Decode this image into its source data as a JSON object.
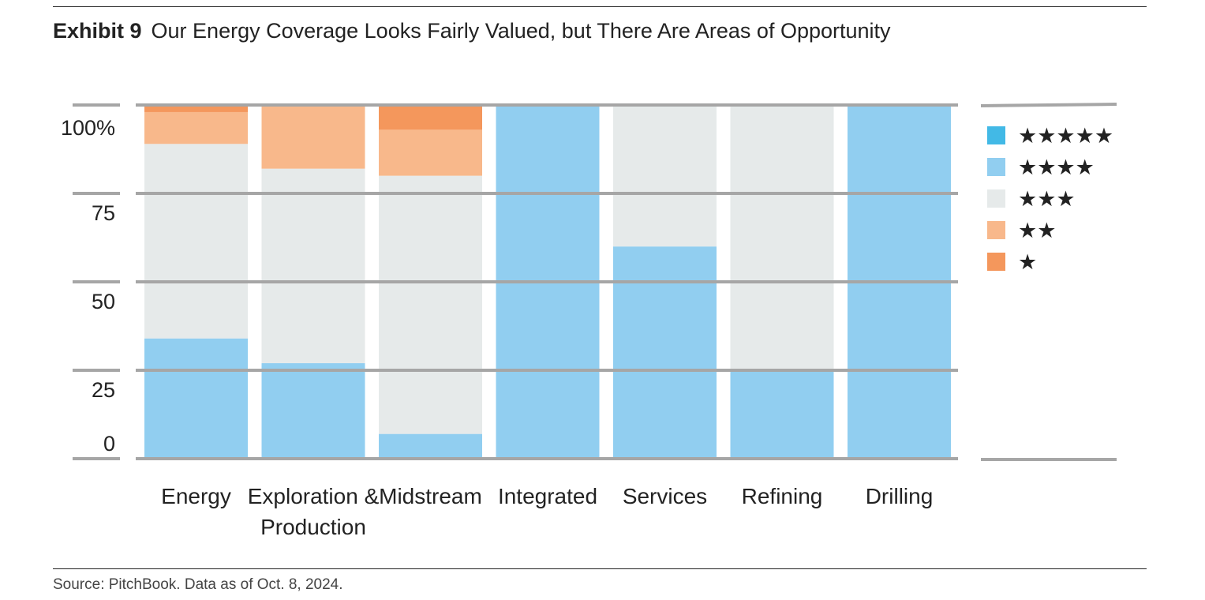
{
  "header": {
    "exhibit_label": "Exhibit 9",
    "title": "Our Energy Coverage Looks Fairly Valued, but There Are Areas of Opportunity"
  },
  "footer": {
    "source": "Source: PitchBook. Data as of Oct. 8, 2024."
  },
  "chart_data": {
    "type": "bar",
    "stacked": true,
    "normalized": true,
    "categories": [
      "Energy",
      "Exploration & Production",
      "Midstream",
      "Integrated",
      "Services",
      "Refining",
      "Drilling"
    ],
    "category_lines": [
      [
        "Energy"
      ],
      [
        "Exploration &",
        "Production"
      ],
      [
        "Midstream"
      ],
      [
        "Integrated"
      ],
      [
        "Services"
      ],
      [
        "Refining"
      ],
      [
        "Drilling"
      ]
    ],
    "series": [
      {
        "name": "★★★★★",
        "color": "#42b9e6",
        "values": [
          0,
          0,
          0,
          0,
          0,
          0,
          0
        ]
      },
      {
        "name": "★★★★",
        "color": "#91cef0",
        "values": [
          34,
          27,
          7,
          100,
          60,
          25,
          100
        ]
      },
      {
        "name": "★★★",
        "color": "#e6eaea",
        "values": [
          55,
          55,
          73,
          0,
          40,
          75,
          0
        ]
      },
      {
        "name": "★★",
        "color": "#f8b88b",
        "values": [
          9,
          18,
          13,
          0,
          0,
          0,
          0
        ]
      },
      {
        "name": "★",
        "color": "#f4975c",
        "values": [
          2,
          0,
          7,
          0,
          0,
          0,
          0
        ]
      }
    ],
    "ylim": [
      0,
      100
    ],
    "yticks": [
      0,
      25,
      50,
      75,
      100
    ],
    "ytick_labels": [
      "0",
      "25",
      "50",
      "75",
      "100%"
    ],
    "grid": true,
    "legend_position": "right"
  }
}
